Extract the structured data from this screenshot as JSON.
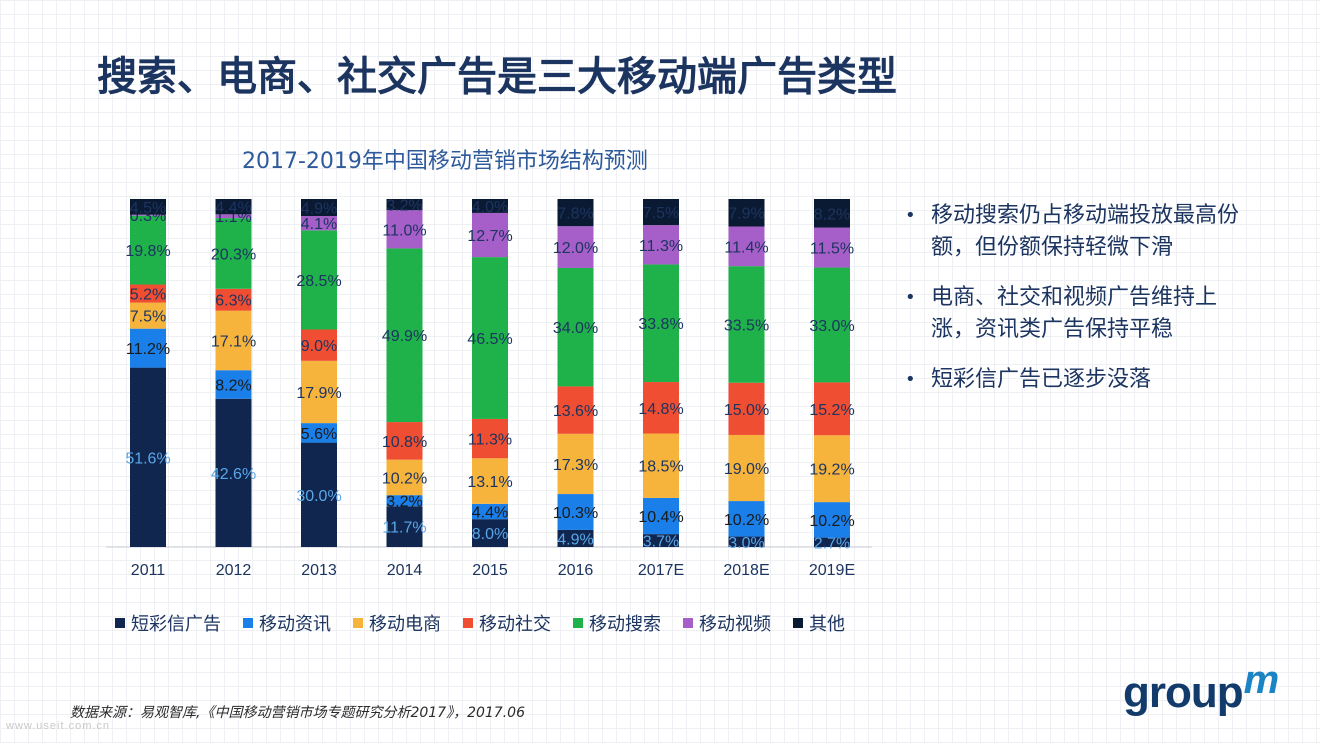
{
  "page": {
    "title": "搜索、电商、社交广告是三大移动端广告类型",
    "source": "数据来源：易观智库,《中国移动营销市场专题研究分析2017》，2017.06",
    "watermark": "www.useit.com.cn",
    "logo_text": "group",
    "logo_mark": "m"
  },
  "bullets": [
    "移动搜索仍占移动端投放最高份额，但份额保持轻微下滑",
    "电商、社交和视频广告维持上涨，资讯类广告保持平稳",
    "短彩信广告已逐步没落"
  ],
  "chart_data": {
    "type": "bar",
    "stacked": true,
    "percent_stacked": true,
    "title": "2017-2019年中国移动营销市场结构预测",
    "xlabel": "",
    "ylabel": "",
    "categories": [
      "2011",
      "2012",
      "2013",
      "2014",
      "2015",
      "2016",
      "2017E",
      "2018E",
      "2019E"
    ],
    "legend_position": "bottom",
    "series": [
      {
        "name": "短彩信广告",
        "color": "#10264f",
        "values": [
          51.6,
          42.6,
          30.0,
          11.7,
          8.0,
          4.9,
          3.7,
          3.0,
          2.7
        ]
      },
      {
        "name": "移动资讯",
        "color": "#1a7fe8",
        "values": [
          11.2,
          8.2,
          5.6,
          3.2,
          4.4,
          10.3,
          10.4,
          10.2,
          10.2
        ]
      },
      {
        "name": "移动电商",
        "color": "#f7b43c",
        "values": [
          7.5,
          17.1,
          17.9,
          10.2,
          13.1,
          17.3,
          18.5,
          19.0,
          19.2
        ]
      },
      {
        "name": "移动社交",
        "color": "#f04e32",
        "values": [
          5.2,
          6.3,
          9.0,
          10.8,
          11.3,
          13.6,
          14.8,
          15.0,
          15.2
        ]
      },
      {
        "name": "移动搜索",
        "color": "#1fb24b",
        "values": [
          19.8,
          20.3,
          28.5,
          49.9,
          46.5,
          34.0,
          33.8,
          33.5,
          33.0
        ]
      },
      {
        "name": "移动视频",
        "color": "#a65fc8",
        "values": [
          0.3,
          1.1,
          4.1,
          11.0,
          12.7,
          12.0,
          11.3,
          11.4,
          11.5
        ]
      },
      {
        "name": "其他",
        "color": "#0b1a33",
        "values": [
          4.5,
          4.4,
          4.9,
          3.2,
          4.0,
          7.8,
          7.5,
          7.9,
          8.2
        ]
      }
    ],
    "label_colors": [
      "#5aa7e8",
      "#1a1a1a",
      "#1c3460",
      "#1c3460",
      "#1c3460",
      "#1c3460",
      "#1c3460"
    ]
  }
}
